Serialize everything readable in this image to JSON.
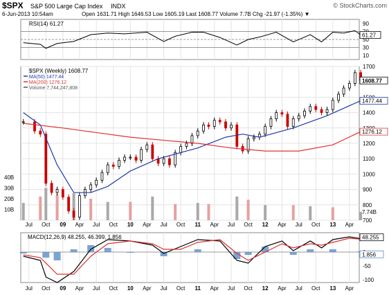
{
  "header": {
    "symbol": "$SPX",
    "name": "S&P 500 Large Cap Index",
    "exchange": "INDX",
    "watermark": "© StockCharts.com",
    "date": "6-Jun-2013 10:54am",
    "quote": "Open 1631.71  High 1646.53  Low 1605.19  Last 1608.77  Volume 7.7B  Chg -21.97 (-1.35%) ▼"
  },
  "colors": {
    "price_up": "#000000",
    "price_down": "#cc0000",
    "ma50": "#1f3aa6",
    "ma200": "#e03030",
    "volume_up": "#a9a9a9",
    "volume_down": "#e6a0a0",
    "macd_line": "#000000",
    "macd_signal": "#e03030",
    "macd_hist": "#5a8dc8",
    "rsi_line": "#000000"
  },
  "chart_data": [
    {
      "type": "line",
      "panel": "rsi",
      "title": "RSI(14) 61.27",
      "current_value": "61.27",
      "ylim": [
        0,
        100
      ],
      "yticks": [
        "90",
        "70",
        "50",
        "30",
        "10"
      ],
      "reference_lines": [
        70,
        50,
        30
      ],
      "series": [
        {
          "name": "RSI(14)",
          "x": [
            "2008-06",
            "2008-09",
            "2008-10",
            "2008-12",
            "2009-03",
            "2009-06",
            "2009-09",
            "2009-12",
            "2010-04",
            "2010-07",
            "2010-09",
            "2010-12",
            "2011-02",
            "2011-05",
            "2011-08",
            "2011-10",
            "2011-12",
            "2012-03",
            "2012-06",
            "2012-09",
            "2012-11",
            "2013-01",
            "2013-03",
            "2013-05",
            "2013-06"
          ],
          "values": [
            42,
            38,
            28,
            40,
            45,
            62,
            66,
            64,
            68,
            45,
            58,
            68,
            68,
            55,
            36,
            50,
            56,
            68,
            44,
            62,
            44,
            68,
            66,
            72,
            61.27
          ]
        }
      ]
    },
    {
      "type": "candlestick",
      "panel": "price",
      "title": "$SPX (Weekly) 1608.77",
      "ylim": [
        700,
        1700
      ],
      "yticks": [
        "1700",
        "1500",
        "1400",
        "1300",
        "1200",
        "1100",
        "1000",
        "900",
        "800",
        "700"
      ],
      "last_labels": [
        "1608.77",
        "1477.44",
        "1276.12"
      ],
      "legend": [
        "$SPX (Weekly) 1608.77",
        "MA(50) 1477.44",
        "MA(200) 1276.12",
        "Volume 7,744,247,808"
      ],
      "series": [
        {
          "name": "$SPX (Weekly)",
          "x": [
            "2008-06",
            "2008-08",
            "2008-09",
            "2008-10",
            "2008-11",
            "2008-12",
            "2009-01",
            "2009-02",
            "2009-03",
            "2009-04",
            "2009-05",
            "2009-06",
            "2009-07",
            "2009-08",
            "2009-09",
            "2009-10",
            "2009-11",
            "2009-12",
            "2010-01",
            "2010-02",
            "2010-03",
            "2010-04",
            "2010-05",
            "2010-06",
            "2010-07",
            "2010-08",
            "2010-09",
            "2010-10",
            "2010-11",
            "2010-12",
            "2011-01",
            "2011-02",
            "2011-03",
            "2011-04",
            "2011-05",
            "2011-06",
            "2011-07",
            "2011-08",
            "2011-09",
            "2011-10",
            "2011-11",
            "2011-12",
            "2012-01",
            "2012-02",
            "2012-03",
            "2012-04",
            "2012-05",
            "2012-06",
            "2012-07",
            "2012-08",
            "2012-09",
            "2012-10",
            "2012-11",
            "2012-12",
            "2013-01",
            "2013-02",
            "2013-03",
            "2013-04",
            "2013-05",
            "2013-06"
          ],
          "values": [
            1340,
            1280,
            1260,
            940,
            880,
            900,
            850,
            760,
            720,
            860,
            900,
            930,
            960,
            1010,
            1060,
            1050,
            1090,
            1110,
            1110,
            1090,
            1160,
            1190,
            1100,
            1070,
            1100,
            1060,
            1140,
            1180,
            1200,
            1250,
            1280,
            1320,
            1310,
            1350,
            1340,
            1300,
            1320,
            1180,
            1150,
            1230,
            1240,
            1260,
            1310,
            1360,
            1400,
            1390,
            1310,
            1360,
            1380,
            1410,
            1440,
            1420,
            1400,
            1420,
            1480,
            1520,
            1560,
            1590,
            1660,
            1608.77
          ]
        },
        {
          "name": "MA(50)",
          "x": [
            "2008-06",
            "2008-09",
            "2008-12",
            "2009-03",
            "2009-06",
            "2009-09",
            "2010-01",
            "2010-06",
            "2011-01",
            "2011-06",
            "2011-09",
            "2011-12",
            "2012-06",
            "2012-12",
            "2013-06"
          ],
          "values": [
            1400,
            1320,
            1060,
            880,
            880,
            920,
            1020,
            1100,
            1170,
            1240,
            1260,
            1240,
            1300,
            1380,
            1477.44
          ]
        },
        {
          "name": "MA(200)",
          "x": [
            "2008-06",
            "2009-01",
            "2009-07",
            "2010-01",
            "2010-07",
            "2011-01",
            "2011-07",
            "2012-01",
            "2012-07",
            "2013-01",
            "2013-06"
          ],
          "values": [
            1330,
            1300,
            1270,
            1240,
            1220,
            1200,
            1170,
            1150,
            1150,
            1190,
            1276.12
          ]
        }
      ]
    },
    {
      "type": "bar",
      "panel": "volume",
      "title": "Volume 7,744,247,808",
      "yticks": [
        "40B",
        "30B",
        "20B",
        "10B"
      ],
      "current_value": "7.74B",
      "series": [
        {
          "name": "Volume",
          "x": [
            "2008-06",
            "2008-09",
            "2008-10",
            "2008-12",
            "2009-03",
            "2009-06",
            "2009-09",
            "2010-01",
            "2010-05",
            "2010-09",
            "2011-01",
            "2011-03",
            "2011-08",
            "2011-10",
            "2012-01",
            "2012-06",
            "2012-09",
            "2013-01",
            "2013-06"
          ],
          "values_billions": [
            16,
            22,
            30,
            24,
            25,
            20,
            17,
            17,
            22,
            15,
            16,
            15,
            22,
            19,
            14,
            14,
            13,
            12,
            7.74
          ]
        }
      ]
    },
    {
      "type": "line",
      "panel": "macd",
      "title": "MACD(12,26,9) 48.255, 46.399, 1.856",
      "ylim": [
        -110,
        70
      ],
      "yticks": [
        "50",
        "0",
        "-50",
        "-100"
      ],
      "last_labels": [
        "48.255",
        "1.856"
      ],
      "series": [
        {
          "name": "MACD(12,26,9)",
          "x": [
            "2008-06",
            "2008-09",
            "2008-10",
            "2008-12",
            "2009-03",
            "2009-06",
            "2009-09",
            "2010-01",
            "2010-05",
            "2010-07",
            "2010-10",
            "2011-01",
            "2011-05",
            "2011-08",
            "2011-10",
            "2012-01",
            "2012-04",
            "2012-06",
            "2012-09",
            "2012-11",
            "2013-01",
            "2013-04",
            "2013-06"
          ],
          "values": [
            -15,
            -30,
            -90,
            -110,
            -70,
            10,
            45,
            40,
            25,
            -5,
            20,
            45,
            40,
            -30,
            -40,
            20,
            40,
            5,
            40,
            15,
            45,
            55,
            48.255
          ]
        },
        {
          "name": "Signal",
          "x": [
            "2008-06",
            "2008-09",
            "2008-12",
            "2009-03",
            "2009-06",
            "2009-09",
            "2010-01",
            "2010-05",
            "2010-07",
            "2010-10",
            "2011-01",
            "2011-05",
            "2011-08",
            "2011-10",
            "2012-01",
            "2012-04",
            "2012-06",
            "2012-09",
            "2012-11",
            "2013-01",
            "2013-04",
            "2013-06"
          ],
          "values": [
            -10,
            -20,
            -80,
            -80,
            -15,
            30,
            40,
            30,
            10,
            10,
            35,
            45,
            -5,
            -30,
            0,
            30,
            15,
            30,
            25,
            35,
            50,
            46.399
          ]
        },
        {
          "name": "Histogram",
          "x": [
            "2008-06",
            "2008-10",
            "2008-12",
            "2009-03",
            "2009-06",
            "2009-09",
            "2010-01",
            "2010-07",
            "2011-01",
            "2011-08",
            "2011-10",
            "2012-01",
            "2012-06",
            "2012-09",
            "2013-01",
            "2013-06"
          ],
          "values": [
            -5,
            -20,
            -30,
            10,
            25,
            15,
            0,
            -15,
            10,
            -25,
            -10,
            20,
            -10,
            10,
            10,
            1.856
          ]
        }
      ]
    }
  ],
  "x_axis": {
    "labels": [
      {
        "label": "Jul",
        "date": "2008-07"
      },
      {
        "label": "Oct",
        "date": "2008-10"
      },
      {
        "label": "09",
        "date": "2009-01",
        "bold": true
      },
      {
        "label": "Apr",
        "date": "2009-04"
      },
      {
        "label": "Jul",
        "date": "2009-07"
      },
      {
        "label": "Oct",
        "date": "2009-10"
      },
      {
        "label": "10",
        "date": "2010-01",
        "bold": true
      },
      {
        "label": "Apr",
        "date": "2010-04"
      },
      {
        "label": "Jul",
        "date": "2010-07"
      },
      {
        "label": "Oct",
        "date": "2010-10"
      },
      {
        "label": "11",
        "date": "2011-01",
        "bold": true
      },
      {
        "label": "Apr",
        "date": "2011-04"
      },
      {
        "label": "Jul",
        "date": "2011-07"
      },
      {
        "label": "Oct",
        "date": "2011-10"
      },
      {
        "label": "12",
        "date": "2012-01",
        "bold": true
      },
      {
        "label": "Apr",
        "date": "2012-04"
      },
      {
        "label": "Jul",
        "date": "2012-07"
      },
      {
        "label": "Oct",
        "date": "2012-10"
      },
      {
        "label": "13",
        "date": "2013-01",
        "bold": true
      },
      {
        "label": "Apr",
        "date": "2013-04"
      }
    ]
  }
}
